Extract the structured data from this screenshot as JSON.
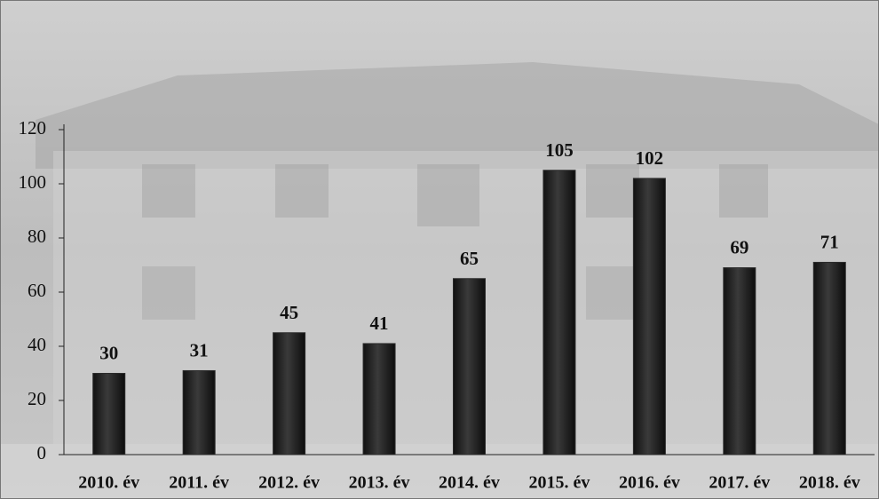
{
  "chart_data": {
    "type": "bar",
    "categories": [
      "2010. év",
      "2011. év",
      "2012. év",
      "2013. év",
      "2014. év",
      "2015. év",
      "2016. év",
      "2017. év",
      "2018. év"
    ],
    "values": [
      30,
      31,
      45,
      41,
      65,
      105,
      102,
      69,
      71
    ],
    "color": "#2b2b2b",
    "ylim": [
      0,
      120
    ],
    "yticks": [
      0,
      20,
      40,
      60,
      80,
      100,
      120
    ]
  }
}
